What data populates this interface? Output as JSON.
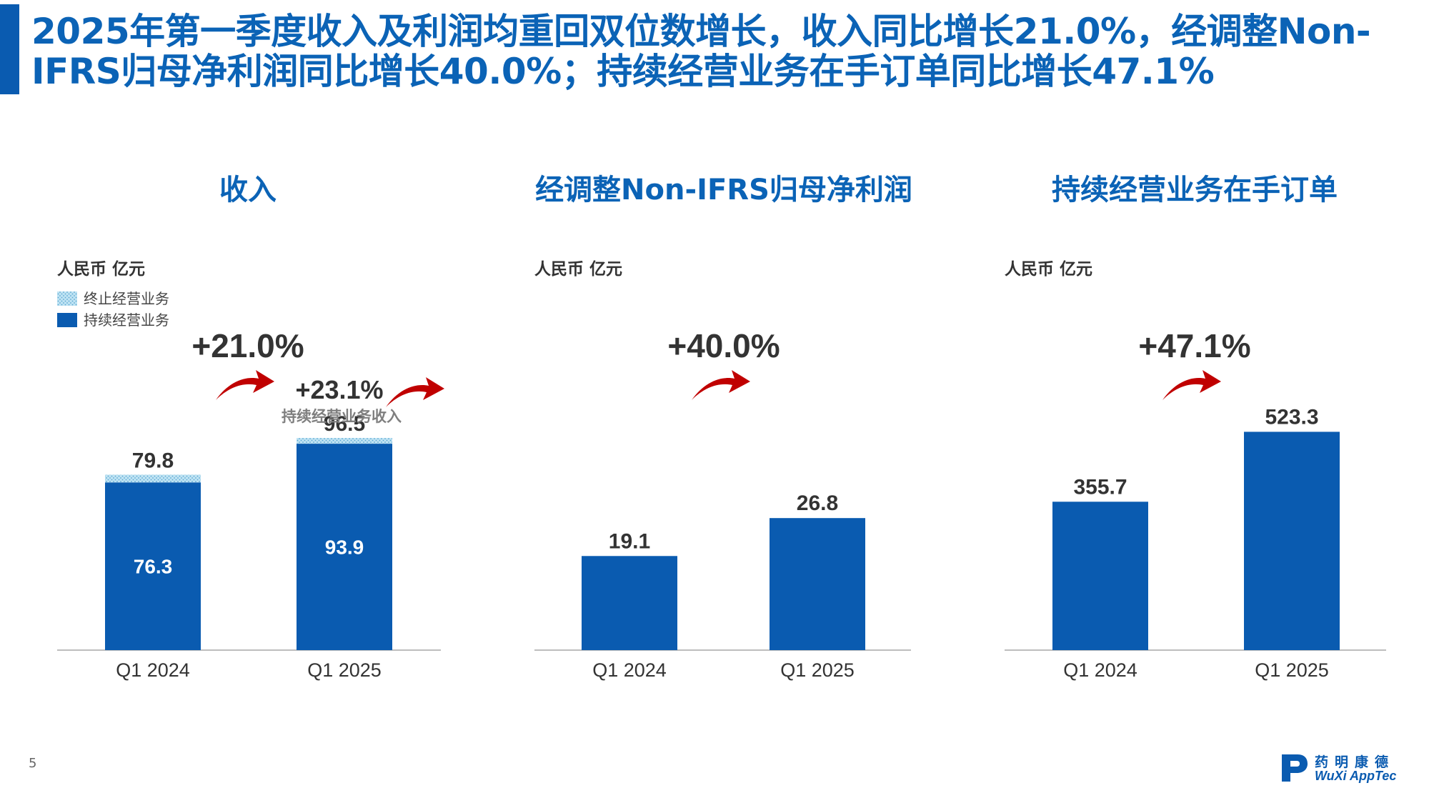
{
  "header": {
    "title_line1": "2025年第一季度收入及利润均重回双位数增长，收入同比增长21.0%，经调整Non-",
    "title_line2": "IFRS归母净利润同比增长40.0%；持续经营业务在手订单同比增长47.1%"
  },
  "footer": {
    "page_number": "5",
    "logo_cn": "药明康德",
    "logo_en": "WuXi AppTec"
  },
  "colors": {
    "title_blue": "#0b63b6",
    "bar_blue": "#0a5bb0",
    "discontinued_fill": "#a8d8ee",
    "arrow_red": "#c00000"
  },
  "chart_data": [
    {
      "type": "bar",
      "title": "收入",
      "unit_label": "人民币 亿元",
      "categories": [
        "Q1 2024",
        "Q1 2025"
      ],
      "legend": [
        "终止经营业务",
        "持续经营业务"
      ],
      "series": [
        {
          "name": "持续经营业务",
          "values": [
            76.3,
            93.9
          ]
        },
        {
          "name": "终止经营业务",
          "values": [
            3.5,
            2.6
          ]
        }
      ],
      "totals": [
        "79.8",
        "96.5"
      ],
      "inner_labels": [
        "76.3",
        "93.9"
      ],
      "growth": "+21.0%",
      "sub_growth": "+23.1%",
      "sub_growth_label": "持续经营业务收入",
      "ylim": [
        0,
        130
      ]
    },
    {
      "type": "bar",
      "title": "经调整Non-IFRS归母净利润",
      "unit_label": "人民币 亿元",
      "categories": [
        "Q1 2024",
        "Q1 2025"
      ],
      "values": [
        19.1,
        26.8
      ],
      "labels": [
        "19.1",
        "26.8"
      ],
      "growth": "+40.0%",
      "ylim": [
        0,
        58
      ]
    },
    {
      "type": "bar",
      "title": "持续经营业务在手订单",
      "unit_label": "人民币 亿元",
      "categories": [
        "Q1 2024",
        "Q1 2025"
      ],
      "values": [
        355.7,
        523.3
      ],
      "labels": [
        "355.7",
        "523.3"
      ],
      "growth": "+47.1%",
      "ylim": [
        0,
        685
      ]
    }
  ]
}
